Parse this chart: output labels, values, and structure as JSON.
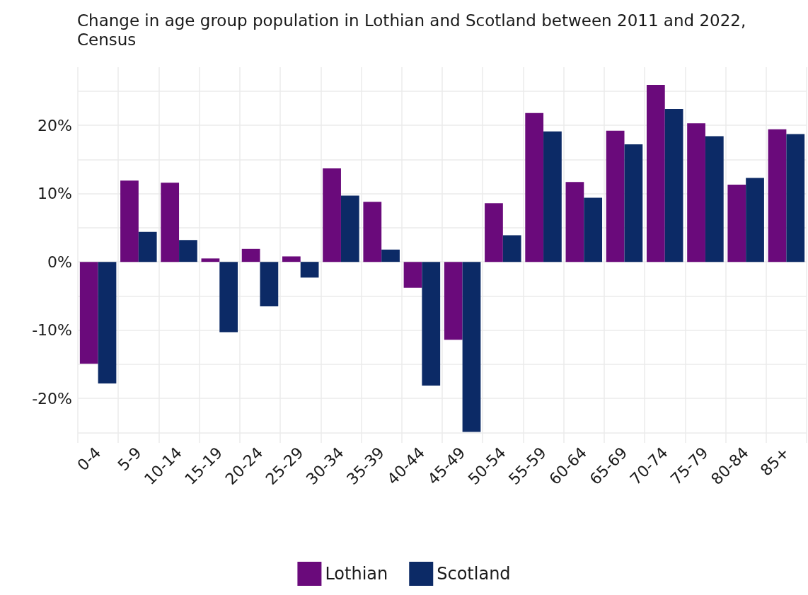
{
  "chart_data": {
    "type": "bar",
    "title": "Change in age group population in Lothian and Scotland between 2011 and 2022, Census",
    "categories": [
      "0-4",
      "5-9",
      "10-14",
      "15-19",
      "20-24",
      "25-29",
      "30-34",
      "35-39",
      "40-44",
      "45-49",
      "50-54",
      "55-59",
      "60-64",
      "65-69",
      "70-74",
      "75-79",
      "80-84",
      "85+"
    ],
    "series": [
      {
        "name": "Lothian",
        "color": "#6a0a7b",
        "values": [
          -14.9,
          11.9,
          11.6,
          0.5,
          1.9,
          0.8,
          13.7,
          8.8,
          -3.8,
          -11.4,
          8.6,
          21.8,
          11.7,
          19.2,
          25.9,
          20.3,
          11.3,
          19.4
        ]
      },
      {
        "name": "Scotland",
        "color": "#0c2a66",
        "values": [
          -17.8,
          4.4,
          3.2,
          -10.3,
          -6.5,
          -2.3,
          9.7,
          1.8,
          -18.1,
          -24.9,
          3.9,
          19.1,
          9.4,
          17.2,
          22.4,
          18.4,
          12.3,
          18.7
        ]
      }
    ],
    "ylim": [
      -26.5,
      28.5
    ],
    "yticks": [
      {
        "value": -25,
        "label": null
      },
      {
        "value": -20,
        "label": "-20%"
      },
      {
        "value": -15,
        "label": null
      },
      {
        "value": -10,
        "label": "-10%"
      },
      {
        "value": -5,
        "label": null
      },
      {
        "value": 0,
        "label": "0%"
      },
      {
        "value": 5,
        "label": null
      },
      {
        "value": 10,
        "label": "10%"
      },
      {
        "value": 15,
        "label": null
      },
      {
        "value": 20,
        "label": "20%"
      },
      {
        "value": 25,
        "label": null
      }
    ],
    "grid": true,
    "legend": "bottom"
  }
}
